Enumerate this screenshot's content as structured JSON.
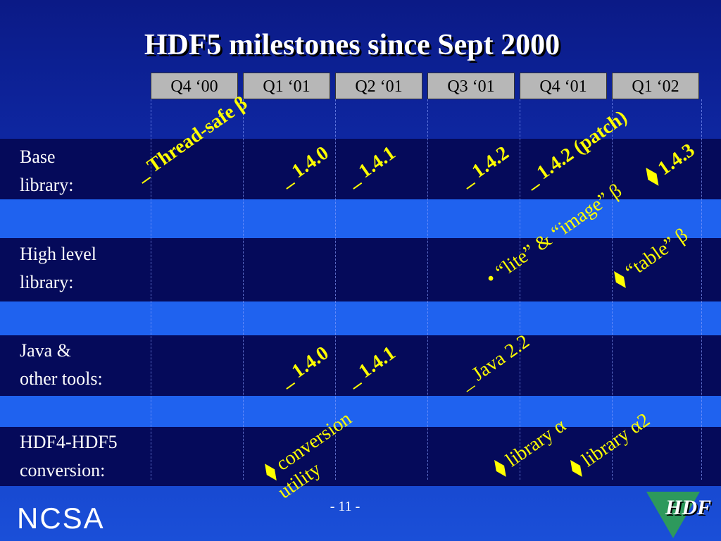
{
  "title": "HDF5 milestones since Sept 2000",
  "quarters": [
    "Q4 ‘00",
    "Q1 ‘01",
    "Q2 ‘01",
    "Q3 ‘01",
    "Q4 ‘01",
    "Q1 ‘02"
  ],
  "rows": [
    {
      "label": "Base\nlibrary:"
    },
    {
      "label": "High level\nlibrary:"
    },
    {
      "label": "Java &\nother tools:"
    },
    {
      "label": "HDF4-HDF5\nconversion:"
    }
  ],
  "milestones": {
    "thread_safe": "_ Thread-safe β",
    "base_140": "_ 1.4.0",
    "base_141": "_ 1.4.1",
    "base_142": "_ 1.4.2",
    "base_142_patch": "_ 1.4.2 (patch)",
    "base_143": "⧫ 1.4.3",
    "lite_image": "• “lite” & “image” β",
    "table": "⧫ “table” β",
    "java_140": "_ 1.4.0",
    "java_141": "_ 1.4.1",
    "java_22": "_ Java 2.2",
    "conversion_utility": "⧫ conversion utility",
    "library_alpha": "⧫ library α",
    "library_alpha2": "⧫ library α2"
  },
  "footer": {
    "page": "- 11 -",
    "left_logo": "NCSA",
    "right_logo": "HDF"
  },
  "colors": {
    "milestone_text": "#ffff00",
    "dark_band": "#050a5a",
    "light_band": "#1f62ef",
    "quarter_box": "#b7b7b7"
  }
}
